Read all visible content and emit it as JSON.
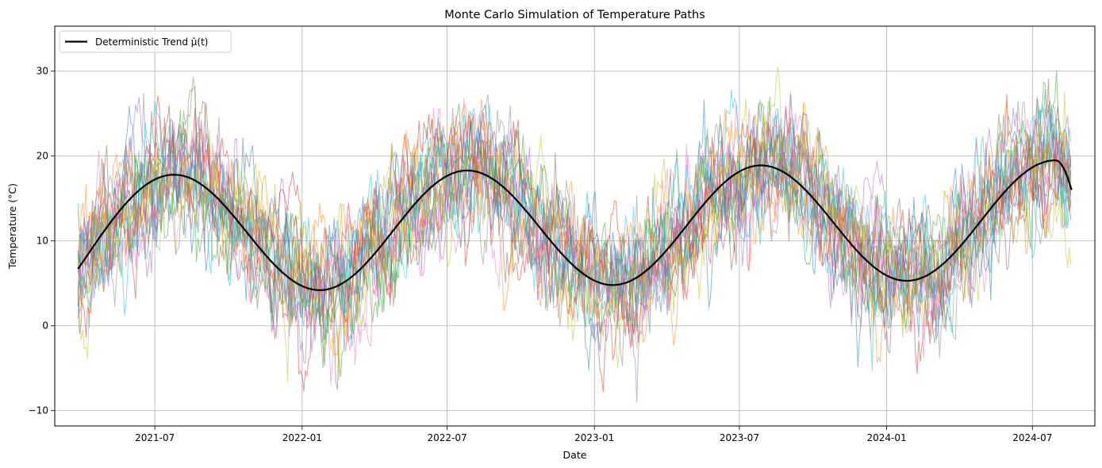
{
  "chart_data": {
    "type": "line",
    "title": "Monte Carlo Simulation of Temperature Paths",
    "xlabel": "Date",
    "ylabel": "Temperature (°C)",
    "x_range": [
      "2021-03-27",
      "2024-08-19"
    ],
    "xlim": [
      "2021-02-26",
      "2024-09-17"
    ],
    "ylim": [
      -11.8,
      35.3
    ],
    "x_ticks": [
      "2021-07",
      "2022-01",
      "2022-07",
      "2023-01",
      "2023-07",
      "2024-01",
      "2024-07"
    ],
    "y_ticks": [
      -10,
      0,
      10,
      20,
      30
    ],
    "grid": true,
    "legend": {
      "position": "top-left",
      "entries": [
        "Deterministic Trend μ̄(t)"
      ]
    },
    "trend": {
      "name": "Deterministic Trend μ̄(t)",
      "color": "#000000",
      "points": [
        [
          "2021-03-27",
          6.7
        ],
        [
          "2021-07-25",
          17.8
        ],
        [
          "2022-01-23",
          4.2
        ],
        [
          "2022-07-26",
          18.3
        ],
        [
          "2023-01-24",
          4.8
        ],
        [
          "2023-07-28",
          18.9
        ],
        [
          "2024-01-26",
          5.3
        ],
        [
          "2024-07-30",
          19.5
        ],
        [
          "2024-08-19",
          18.8
        ]
      ]
    },
    "simulated_paths": {
      "count": 20,
      "opacity": 0.5,
      "approx_range": [
        -9.5,
        33.2
      ],
      "colors": [
        "#1f77b4",
        "#ff7f0e",
        "#2ca02c",
        "#d62728",
        "#9467bd",
        "#8c564b",
        "#e377c2",
        "#7f7f7f",
        "#bcbd22",
        "#17becf"
      ]
    }
  }
}
